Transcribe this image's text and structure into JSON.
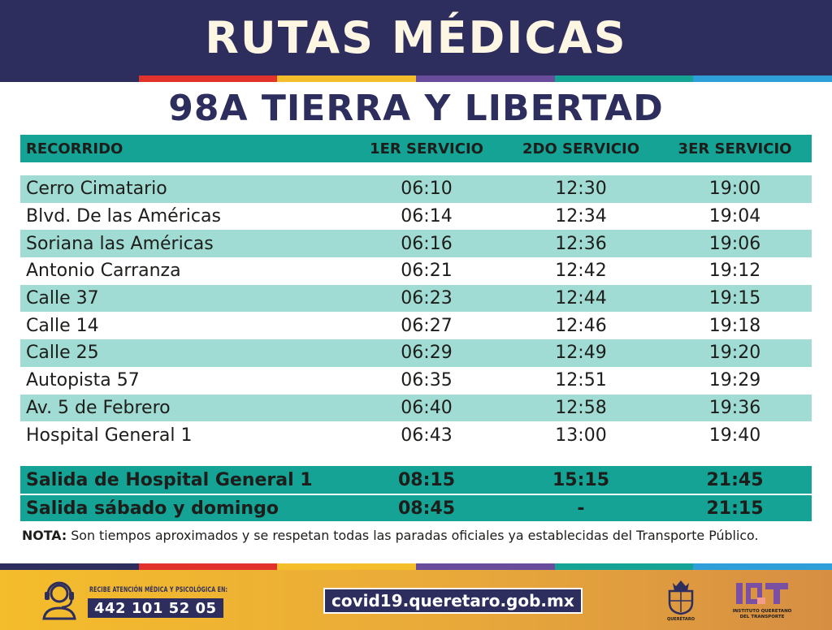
{
  "header": {
    "title": "RUTAS MÉDICAS"
  },
  "stripe_colors": [
    "#2e2e5e",
    "#e1332b",
    "#f4bd2b",
    "#6a4c9c",
    "#14a394",
    "#2e9fd9"
  ],
  "route": {
    "title": "98A TIERRA Y LIBERTAD"
  },
  "table": {
    "headers": [
      "RECORRIDO",
      "1ER SERVICIO",
      "2DO SERVICIO",
      "3ER SERVICIO"
    ],
    "rows": [
      [
        "Cerro Cimatario",
        "06:10",
        "12:30",
        "19:00"
      ],
      [
        "Blvd. De las Américas",
        "06:14",
        "12:34",
        "19:04"
      ],
      [
        "Soriana las Américas",
        "06:16",
        "12:36",
        "19:06"
      ],
      [
        "Antonio Carranza",
        "06:21",
        "12:42",
        "19:12"
      ],
      [
        "Calle 37",
        "06:23",
        "12:44",
        "19:15"
      ],
      [
        "Calle 14",
        "06:27",
        "12:46",
        "19:18"
      ],
      [
        "Calle 25",
        "06:29",
        "12:49",
        "19:20"
      ],
      [
        "Autopista 57",
        "06:35",
        "12:51",
        "19:29"
      ],
      [
        "Av. 5 de Febrero",
        "06:40",
        "12:58",
        "19:36"
      ],
      [
        "Hospital General 1",
        "06:43",
        "13:00",
        "19:40"
      ]
    ],
    "departures": [
      [
        "Salida de Hospital General 1",
        "08:15",
        "15:15",
        "21:45"
      ],
      [
        "Salida sábado y domingo",
        "08:45",
        "-",
        "21:15"
      ]
    ]
  },
  "note": {
    "label": "NOTA:",
    "text": " Son tiempos aproximados y se respetan todas las paradas oficiales ya establecidas del Transporte Público."
  },
  "footer": {
    "icon": "headset-agent-icon",
    "help_label": "RECIBE ATENCIÓN MÉDICA Y PSICOLÓGICA EN:",
    "phone": "442 101 52 05",
    "website": "covid19.queretaro.gob.mx",
    "state_logo_text": "QUERÉTARO",
    "iqt_logo_text": "INSTITUTO QUERETANO DEL TRANSPORTE"
  }
}
